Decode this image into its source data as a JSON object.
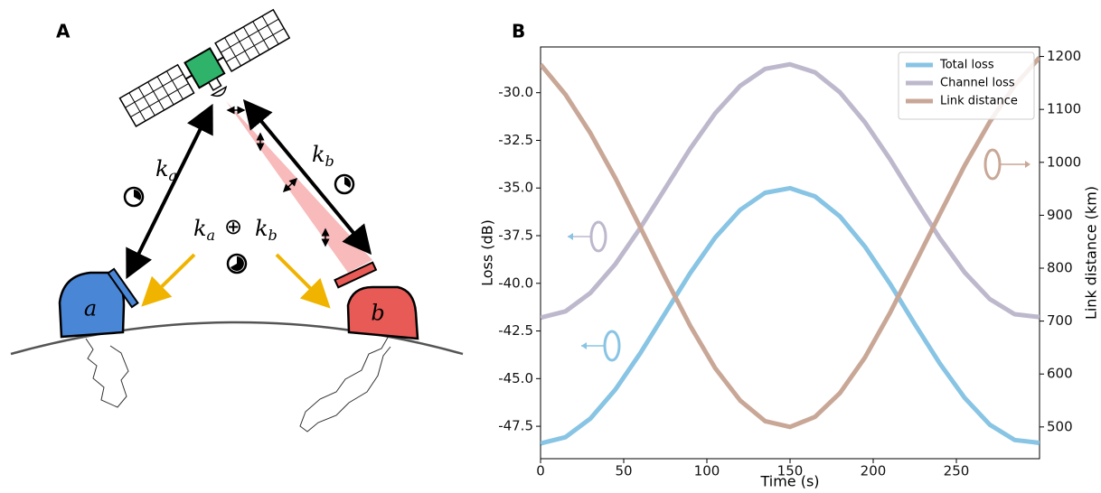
{
  "panel_a": {
    "label": "A",
    "station_a": "a",
    "station_b": "b",
    "key_a": [
      "k",
      "a"
    ],
    "key_b": [
      "k",
      "b"
    ],
    "xor": "⊕"
  },
  "chart_data": {
    "type": "line",
    "label": "B",
    "x_label": "Time (s)",
    "y_label": "Loss (dB)",
    "y2_label": "Link distance (km)",
    "x": [
      0,
      15,
      30,
      45,
      60,
      75,
      90,
      105,
      120,
      135,
      150,
      165,
      180,
      195,
      210,
      225,
      240,
      255,
      270,
      285,
      300
    ],
    "series": [
      {
        "name": "Total loss",
        "color": "#88c4e4",
        "axis": "y",
        "values": [
          -48.4,
          -48.07,
          -47.09,
          -45.57,
          -43.66,
          -41.56,
          -39.46,
          -37.6,
          -36.15,
          -35.25,
          -35.01,
          -35.44,
          -36.49,
          -38.07,
          -40.01,
          -42.14,
          -44.2,
          -46.01,
          -47.41,
          -48.22,
          -48.37
        ]
      },
      {
        "name": "Channel loss",
        "color": "#beb8cc",
        "axis": "y",
        "values": [
          -41.8,
          -41.47,
          -40.5,
          -38.99,
          -37.09,
          -35.01,
          -32.93,
          -31.08,
          -29.64,
          -28.75,
          -28.51,
          -28.93,
          -29.98,
          -31.55,
          -33.47,
          -35.58,
          -37.63,
          -39.43,
          -40.82,
          -41.62,
          -41.77
        ]
      },
      {
        "name": "Link distance",
        "color": "#c9a797",
        "axis": "y2",
        "values": [
          1185,
          1128,
          1055,
          970,
          877,
          782,
          691,
          611,
          550,
          511,
          500,
          519,
          564,
          631,
          715,
          808,
          902,
          994,
          1076,
          1145,
          1198
        ]
      }
    ],
    "xlim": [
      0,
      300
    ],
    "xticks": [
      0,
      50,
      100,
      150,
      200,
      250
    ],
    "ylim": [
      -49.2,
      -27.6
    ],
    "yticks": [
      {
        "value": -30,
        "label": "-30.0"
      },
      -32.5,
      {
        "value": -35,
        "label": "-35.0"
      },
      -37.5,
      {
        "value": -40,
        "label": "-40.0"
      },
      -42.5,
      {
        "value": -45,
        "label": "-45.0"
      },
      -47.5
    ],
    "y2lim": [
      440,
      1218
    ],
    "y2ticks": [
      500,
      600,
      700,
      800,
      900,
      1000,
      1100,
      1200
    ],
    "legend": "upper right",
    "grid": false
  }
}
